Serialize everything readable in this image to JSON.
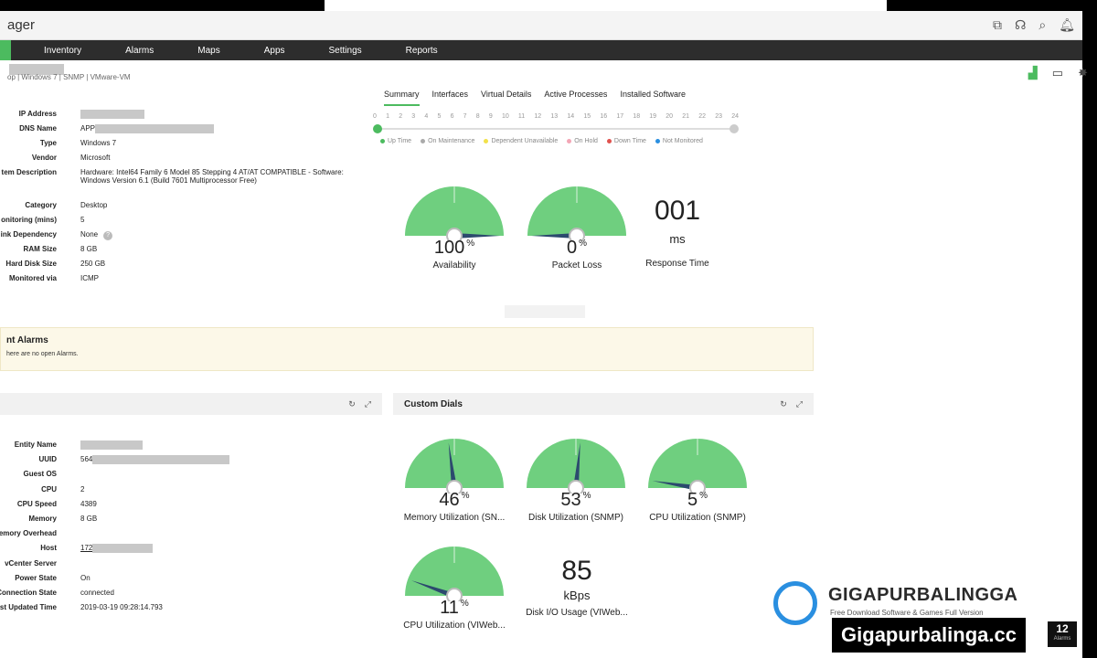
{
  "app": {
    "title_fragment": "ager"
  },
  "nav": {
    "items": [
      "Inventory",
      "Alarms",
      "Maps",
      "Apps",
      "Settings",
      "Reports"
    ]
  },
  "device": {
    "breadcrumb": "op | Windows 7  | SNMP  | VMware-VM"
  },
  "tabs": [
    "Summary",
    "Interfaces",
    "Virtual Details",
    "Active Processes",
    "Installed Software"
  ],
  "details": [
    {
      "label": "IP Address",
      "value": ""
    },
    {
      "label": "DNS Name",
      "value": "APP"
    },
    {
      "label": "Type",
      "value": "Windows 7"
    },
    {
      "label": "Vendor",
      "value": "Microsoft"
    },
    {
      "label": "tem Description",
      "value": "Hardware: Intel64 Family 6 Model 85 Stepping 4 AT/AT COMPATIBLE - Software: Windows Version 6.1 (Build 7601 Multiprocessor Free)"
    },
    {
      "label": "Category",
      "value": "Desktop"
    },
    {
      "label": "onitoring (mins)",
      "value": "5"
    },
    {
      "label": "ink Dependency",
      "value": "None"
    },
    {
      "label": "RAM Size",
      "value": "8 GB"
    },
    {
      "label": "Hard Disk Size",
      "value": "250 GB"
    },
    {
      "label": "Monitored via",
      "value": "ICMP"
    }
  ],
  "timeline": {
    "hours": [
      "0",
      "1",
      "2",
      "3",
      "4",
      "5",
      "6",
      "7",
      "8",
      "9",
      "10",
      "11",
      "12",
      "13",
      "14",
      "15",
      "16",
      "17",
      "18",
      "19",
      "20",
      "21",
      "22",
      "23",
      "24"
    ],
    "legend": [
      {
        "label": "Up Time",
        "color": "#4cbb5f"
      },
      {
        "label": "On Maintenance",
        "color": "#aaaaaa"
      },
      {
        "label": "Dependent Unavailable",
        "color": "#f2e14a"
      },
      {
        "label": "On Hold",
        "color": "#f3a6b5"
      },
      {
        "label": "Down Time",
        "color": "#e0524e"
      },
      {
        "label": "Not Monitored",
        "color": "#2a8fe0"
      }
    ]
  },
  "summary_dials": [
    {
      "value": "100",
      "unit": "%",
      "label": "Availability",
      "level": 1.0
    },
    {
      "value": "0",
      "unit": "%",
      "label": "Packet Loss",
      "level": 0.0
    }
  ],
  "response": {
    "value": "001",
    "unit": "ms",
    "label": "Response Time"
  },
  "alarms": {
    "title": "nt Alarms",
    "message": "here are no open Alarms."
  },
  "custom_dials": {
    "title": "Custom Dials",
    "dials": [
      {
        "value": "46",
        "unit": "%",
        "label": "Memory Utilization (SN...",
        "level": 0.46
      },
      {
        "value": "53",
        "unit": "%",
        "label": "Disk Utilization (SNMP)",
        "level": 0.53
      },
      {
        "value": "5",
        "unit": "%",
        "label": "CPU Utilization (SNMP)",
        "level": 0.05
      },
      {
        "value": "11",
        "unit": "%",
        "label": "CPU Utilization (VIWeb...",
        "level": 0.11
      }
    ],
    "disk_io": {
      "value": "85",
      "unit": "kBps",
      "label": "Disk I/O Usage (VIWeb..."
    }
  },
  "vm_details": [
    {
      "label": "Entity Name",
      "value": ""
    },
    {
      "label": "UUID",
      "value": "564"
    },
    {
      "label": "Guest OS",
      "value": ""
    },
    {
      "label": "CPU",
      "value": "2"
    },
    {
      "label": "CPU Speed",
      "value": "4389"
    },
    {
      "label": "Memory",
      "value": "8 GB"
    },
    {
      "label": "emory Overhead",
      "value": ""
    },
    {
      "label": "Host",
      "value": "172"
    },
    {
      "label": "vCenter Server",
      "value": ""
    },
    {
      "label": "Power State",
      "value": "On"
    },
    {
      "label": "Connection State",
      "value": "connected"
    },
    {
      "label": "st Updated Time",
      "value": "2019-03-19 09:28:14.793"
    }
  ],
  "watermark": {
    "title": "GIGAPURBALINGGA",
    "subtitle": "Free Download Software & Games Full Version",
    "url": "Gigapurbalinga.cc"
  },
  "alarm_badge": {
    "count": "12",
    "label": "Alarms"
  }
}
